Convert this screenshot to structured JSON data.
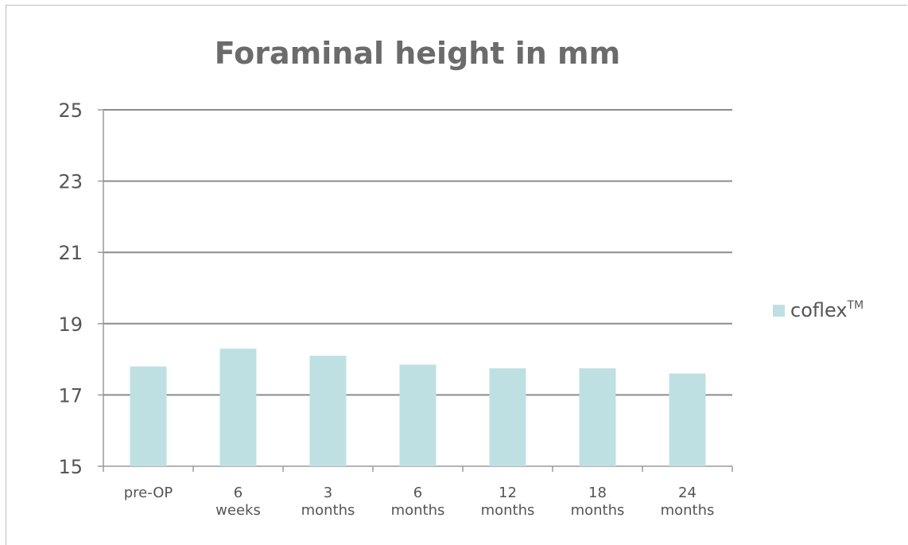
{
  "chart_data": {
    "type": "bar",
    "title": "Foraminal height in mm",
    "categories": [
      "pre-OP",
      "6 weeks",
      "3 months",
      "6 months",
      "12 months",
      "18 months",
      "24 months"
    ],
    "category_lines": [
      [
        "pre-OP"
      ],
      [
        "6",
        "weeks"
      ],
      [
        "3",
        "months"
      ],
      [
        "6",
        "months"
      ],
      [
        "12",
        "months"
      ],
      [
        "18",
        "months"
      ],
      [
        "24",
        "months"
      ]
    ],
    "series": [
      {
        "name": "coflex",
        "name_superscript": "TM",
        "values": [
          17.8,
          18.3,
          18.1,
          17.85,
          17.75,
          17.75,
          17.6
        ]
      }
    ],
    "ylim": [
      15,
      25
    ],
    "yticks": [
      "25",
      "23",
      "21",
      "19",
      "17",
      "15"
    ],
    "xlabel": "",
    "ylabel": "",
    "grid": true,
    "legend_position": "right"
  },
  "colors": {
    "bar": "#bfe0e3",
    "grid": "#8c8c8c",
    "axis": "#9a9a9a",
    "text": "#555555",
    "title": "#6b6b6b"
  }
}
